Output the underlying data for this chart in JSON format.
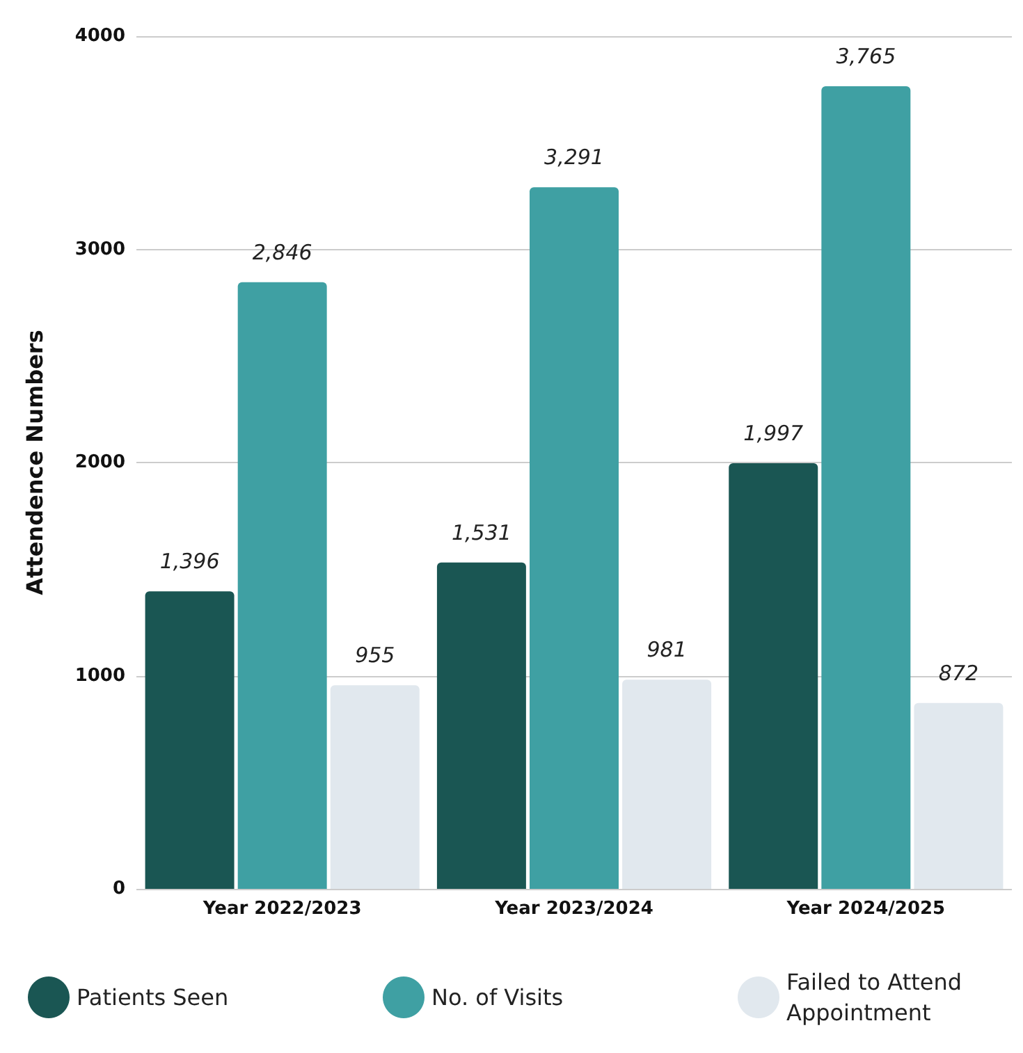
{
  "chart_data": {
    "type": "bar",
    "ylabel": "Attendence Numbers",
    "categories": [
      "Year 2022/2023",
      "Year 2023/2024",
      "Year 2024/2025"
    ],
    "series": [
      {
        "name": "Patients Seen",
        "color": "#1a5653",
        "values": [
          1396,
          1531,
          1997
        ],
        "value_labels": [
          "1,396",
          "1,531",
          "1,997"
        ]
      },
      {
        "name": "No. of Visits",
        "color": "#3fa0a3",
        "values": [
          2846,
          3291,
          3765
        ],
        "value_labels": [
          "2,846",
          "3,291",
          "3,765"
        ]
      },
      {
        "name": "Failed to Attend Appointment",
        "color": "#e1e8ee",
        "values": [
          955,
          981,
          872
        ],
        "value_labels": [
          "955",
          "981",
          "872"
        ]
      }
    ],
    "ylim": [
      0,
      4000
    ],
    "yticks": [
      0,
      1000,
      2000,
      3000,
      4000
    ],
    "grid": "y",
    "legend": "bottom"
  }
}
